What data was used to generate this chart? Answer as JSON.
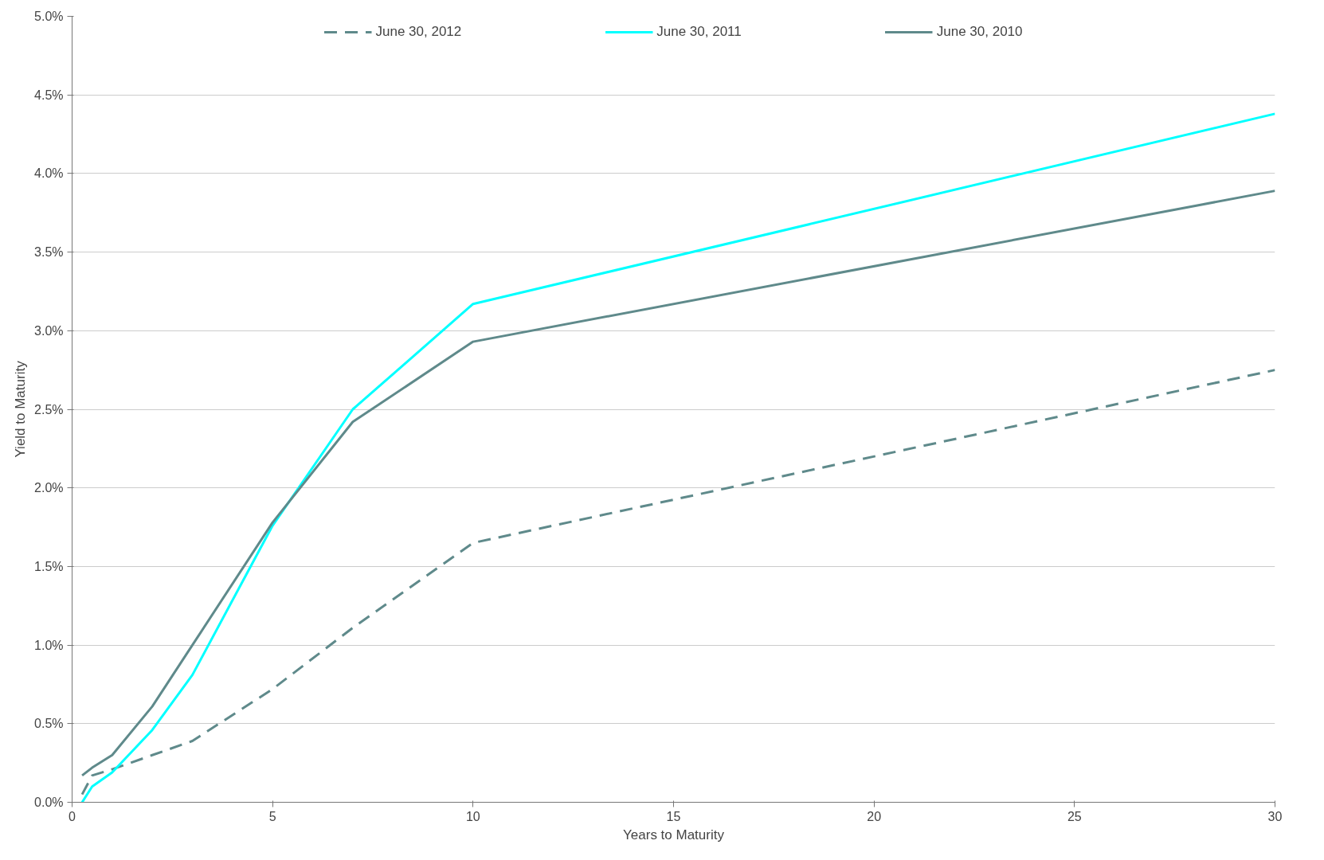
{
  "chart_data": {
    "type": "line",
    "xlabel": "Years to Maturity",
    "ylabel": "Yield to Maturity",
    "x": [
      0.25,
      0.5,
      1,
      2,
      3,
      5,
      7,
      10,
      30
    ],
    "series": [
      {
        "name": "June 30, 2012",
        "color": "#5f8a8b",
        "line_style": "dashed",
        "values": [
          0.05,
          0.17,
          0.21,
          0.3,
          0.39,
          0.72,
          1.11,
          1.65,
          2.75
        ]
      },
      {
        "name": "June 30, 2011",
        "color": "#00ffff",
        "values": [
          0.0,
          0.1,
          0.19,
          0.46,
          0.81,
          1.76,
          2.5,
          3.17,
          4.38
        ]
      },
      {
        "name": "June 30, 2010",
        "color": "#5f8a8b",
        "values": [
          0.17,
          0.22,
          0.3,
          0.61,
          1.0,
          1.78,
          2.42,
          2.93,
          3.89
        ]
      }
    ],
    "xlim": [
      0,
      30
    ],
    "xticks": [
      0,
      5,
      10,
      15,
      20,
      25,
      30
    ],
    "ylim": [
      0,
      5
    ],
    "yticks": [
      {
        "value": 0,
        "label": "0.0%"
      },
      {
        "value": 0.5,
        "label": "0.5%"
      },
      {
        "value": 1,
        "label": "1.0%"
      },
      {
        "value": 1.5,
        "label": "1.5%"
      },
      {
        "value": 2,
        "label": "2.0%"
      },
      {
        "value": 2.5,
        "label": "2.5%"
      },
      {
        "value": 3,
        "label": "3.0%"
      },
      {
        "value": 3.5,
        "label": "3.5%"
      },
      {
        "value": 4,
        "label": "4.0%"
      },
      {
        "value": 4.5,
        "label": "4.5%"
      },
      {
        "value": 5,
        "label": "5.0%"
      }
    ],
    "grid": "y",
    "legend": "top",
    "line_style": "solid",
    "marker": "none"
  }
}
